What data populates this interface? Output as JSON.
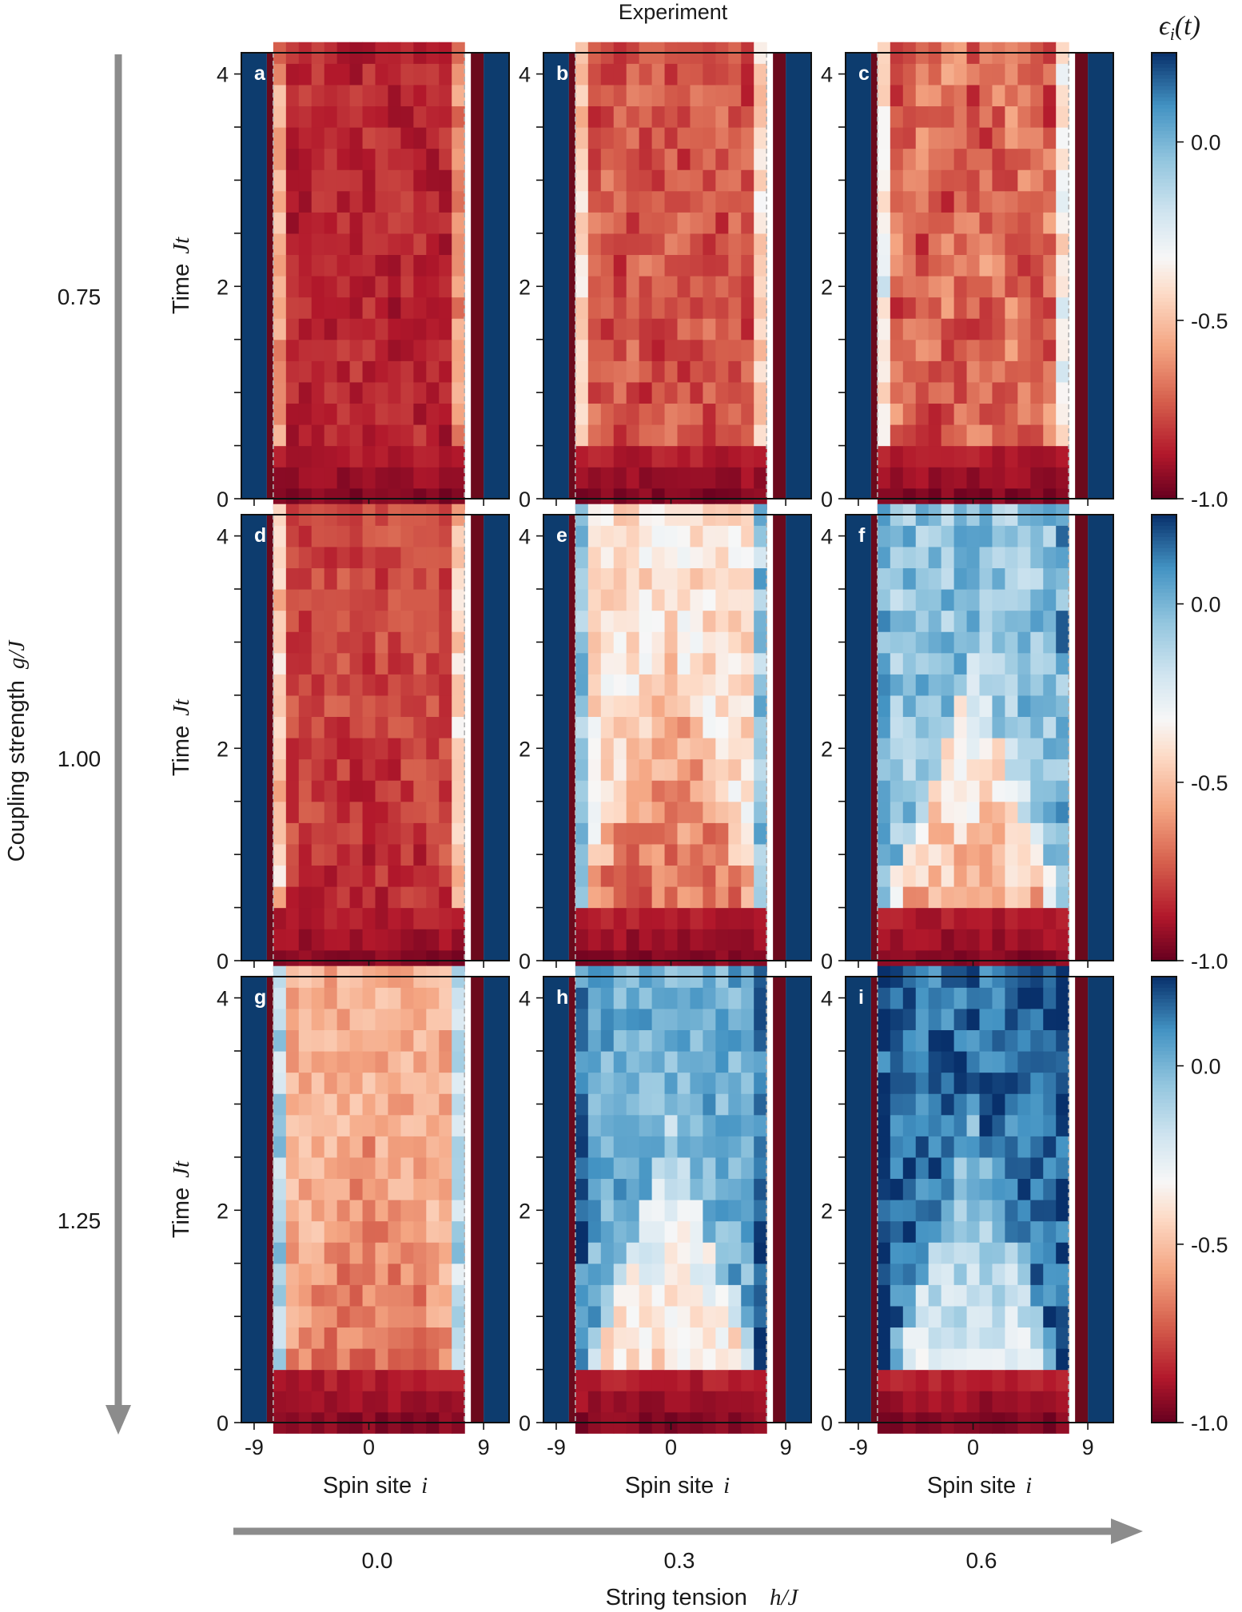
{
  "figure": {
    "title": "Experiment",
    "colorbar_label": "ϵ",
    "colorbar_label_sub": "i",
    "colorbar_label_tail": "(t)",
    "row_axis_label": "Coupling strength",
    "row_axis_symbol": "g/J",
    "column_axis_label": "String tension",
    "column_axis_symbol": "h/J",
    "y_axis_label": "Time",
    "y_axis_symbol": "Jt",
    "x_axis_label": "Spin site",
    "x_axis_symbol": "i",
    "row_values": [
      "0.75",
      "1.00",
      "1.25"
    ],
    "column_values": [
      "0.0",
      "0.3",
      "0.6"
    ],
    "colors": {
      "arrow": "#8c8c8c",
      "boundary_blue": "#0d3c6e",
      "boundary_red": "#6b0a1c",
      "string_edge": "#b2b2b2"
    }
  },
  "chart_data": {
    "type": "heatmap",
    "x": {
      "label": "Spin site i",
      "range": [
        -10,
        11
      ],
      "ticks": [
        -9,
        0,
        9
      ],
      "tick_labels": [
        "-9",
        "0",
        "9"
      ]
    },
    "y": {
      "label": "Time Jt",
      "range": [
        0,
        4.2
      ],
      "ticks": [
        0,
        0.5,
        1,
        1.5,
        2,
        2.5,
        3,
        3.5,
        4
      ],
      "tick_labels": [
        "0",
        "",
        "",
        "",
        "2",
        "",
        "",
        "",
        "4"
      ]
    },
    "colorbar": {
      "label": "ϵ_i(t)",
      "range": [
        -1.0,
        0.25
      ],
      "ticks": [
        -1.0,
        -0.5,
        0.0
      ],
      "tick_labels": [
        "-1.0",
        "-0.5",
        "0.0"
      ],
      "colormap": "RdBu"
    },
    "boundary": {
      "left_blue": [
        -10,
        -8
      ],
      "left_red": -8,
      "right_red": 8,
      "right_blue": [
        9,
        11
      ],
      "string_sites": [
        -7,
        7
      ],
      "dashed_edges": [
        -7,
        7
      ]
    },
    "time_step": 0.2,
    "panels": [
      {
        "label": "a",
        "g_over_J": 0.75,
        "h_over_J": 0.0,
        "regime": "flat",
        "base": -0.88,
        "early": -0.96,
        "edge": -0.6,
        "mid": -0.82,
        "contrast": 0.06
      },
      {
        "label": "b",
        "g_over_J": 0.75,
        "h_over_J": 0.3,
        "regime": "flat",
        "base": -0.7,
        "early": -0.95,
        "edge": -0.45,
        "mid": -0.8,
        "contrast": 0.08
      },
      {
        "label": "c",
        "g_over_J": 0.75,
        "h_over_J": 0.6,
        "regime": "flat",
        "base": -0.62,
        "early": -0.95,
        "edge": -0.35,
        "mid": -0.8,
        "contrast": 0.1
      },
      {
        "label": "d",
        "g_over_J": 1.0,
        "h_over_J": 0.0,
        "regime": "cone",
        "base": -0.78,
        "early": -0.95,
        "edge": -0.45,
        "mid": -0.85,
        "contrast": 0.07
      },
      {
        "label": "e",
        "g_over_J": 1.0,
        "h_over_J": 0.3,
        "regime": "cone",
        "base": -0.4,
        "early": -0.95,
        "edge": -0.05,
        "mid": -0.78,
        "contrast": 0.1
      },
      {
        "label": "f",
        "g_over_J": 1.0,
        "h_over_J": 0.6,
        "regime": "cone",
        "base": -0.05,
        "early": -0.95,
        "edge": 0.02,
        "mid": -0.7,
        "contrast": 0.12
      },
      {
        "label": "g",
        "g_over_J": 1.25,
        "h_over_J": 0.0,
        "regime": "cone",
        "base": -0.55,
        "early": -0.95,
        "edge": -0.15,
        "mid": -0.72,
        "contrast": 0.08
      },
      {
        "label": "h",
        "g_over_J": 1.25,
        "h_over_J": 0.3,
        "regime": "cone",
        "base": 0.02,
        "early": -0.95,
        "edge": 0.15,
        "mid": -0.55,
        "contrast": 0.1
      },
      {
        "label": "i",
        "g_over_J": 1.25,
        "h_over_J": 0.6,
        "regime": "cone",
        "base": 0.16,
        "early": -0.95,
        "edge": 0.22,
        "mid": -0.35,
        "contrast": 0.1
      }
    ]
  }
}
